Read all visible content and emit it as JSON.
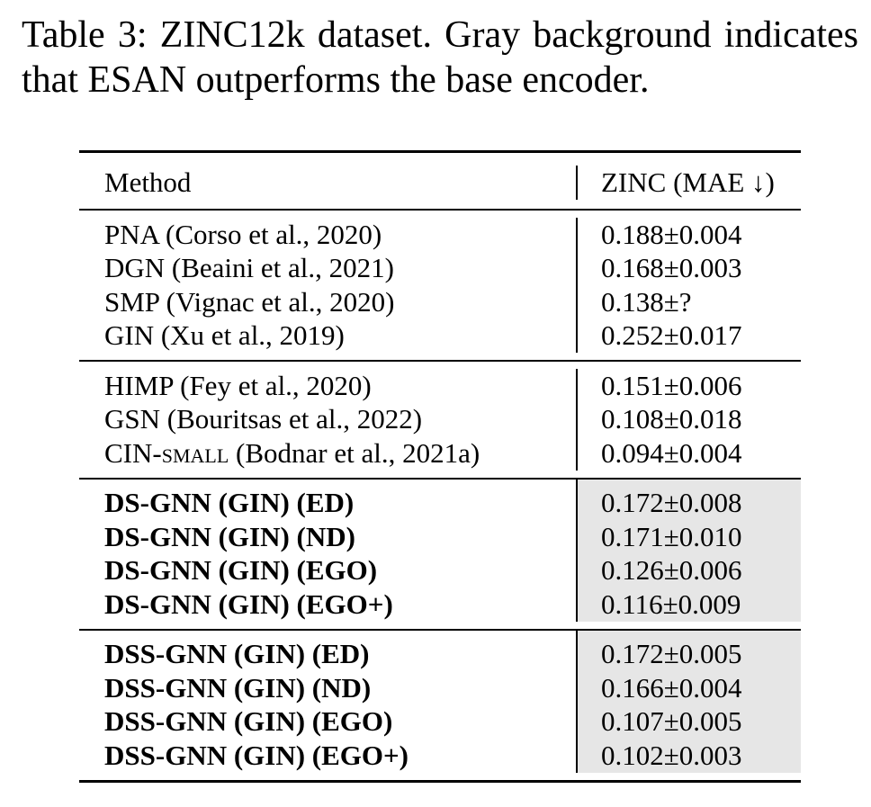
{
  "caption": "Table 3: ZINC12k dataset. Gray background indicates that ESAN outperforms the base encoder.",
  "table": {
    "headers": {
      "method": "Method",
      "metric": "ZINC (MAE ↓)"
    },
    "groups": [
      {
        "shaded": false,
        "bold": false,
        "rows": [
          {
            "method": "PNA (Corso et al., 2020)",
            "value": "0.188±0.004"
          },
          {
            "method": "DGN (Beaini et al., 2021)",
            "value": "0.168±0.003"
          },
          {
            "method": "SMP (Vignac et al., 2020)",
            "value": "0.138±?"
          },
          {
            "method": "GIN (Xu et al., 2019)",
            "value": "0.252±0.017"
          }
        ]
      },
      {
        "shaded": false,
        "bold": false,
        "rows": [
          {
            "method": "HIMP (Fey et al., 2020)",
            "value": "0.151±0.006"
          },
          {
            "method": "GSN (Bouritsas et al., 2022)",
            "value": "0.108±0.018"
          },
          {
            "method_prefix": "CIN-",
            "method_sc": "small",
            "method_suffix": " (Bodnar et al., 2021a)",
            "value": "0.094±0.004"
          }
        ]
      },
      {
        "shaded": true,
        "bold": true,
        "rows": [
          {
            "method": "DS-GNN (GIN) (ED)",
            "value": "0.172±0.008"
          },
          {
            "method": "DS-GNN (GIN) (ND)",
            "value": "0.171±0.010"
          },
          {
            "method": "DS-GNN (GIN) (EGO)",
            "value": "0.126±0.006"
          },
          {
            "method": "DS-GNN (GIN) (EGO+)",
            "value": "0.116±0.009"
          }
        ]
      },
      {
        "shaded": true,
        "bold": true,
        "rows": [
          {
            "method": "DSS-GNN (GIN) (ED)",
            "value": "0.172±0.005"
          },
          {
            "method": "DSS-GNN (GIN) (ND)",
            "value": "0.166±0.004"
          },
          {
            "method": "DSS-GNN (GIN) (EGO)",
            "value": "0.107±0.005"
          },
          {
            "method": "DSS-GNN (GIN) (EGO+)",
            "value": "0.102±0.003"
          }
        ]
      }
    ]
  }
}
